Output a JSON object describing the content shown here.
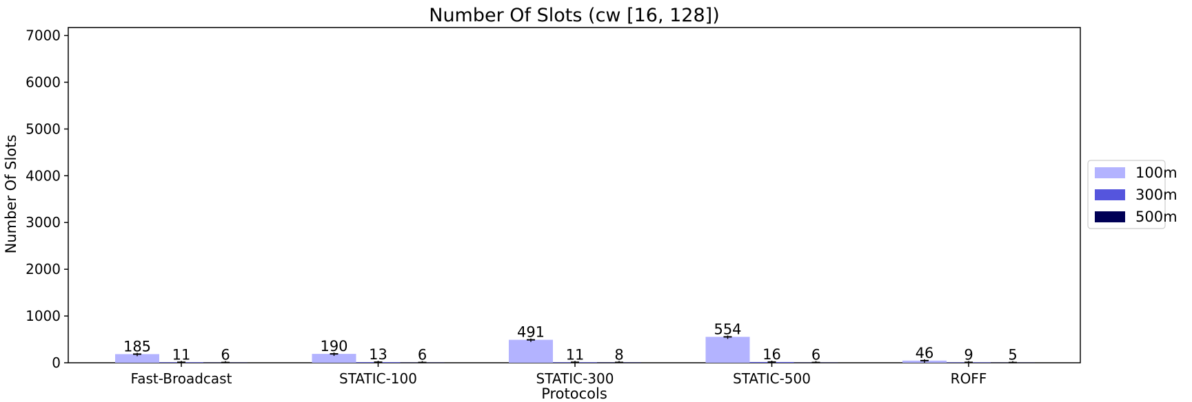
{
  "chart_data": {
    "type": "bar",
    "title": "Number Of Slots (cw [16, 128])",
    "xlabel": "Protocols",
    "ylabel": "Number Of Slots",
    "ylim": [
      0,
      7170
    ],
    "yticks": [
      0,
      1000,
      2000,
      3000,
      4000,
      5000,
      6000,
      7000
    ],
    "categories": [
      "Fast-Broadcast",
      "STATIC-100",
      "STATIC-300",
      "STATIC-500",
      "ROFF"
    ],
    "series": [
      {
        "name": "100m",
        "color": "#b3b3ff",
        "values": [
          185,
          190,
          491,
          554,
          46
        ]
      },
      {
        "name": "300m",
        "color": "#5555dd",
        "values": [
          11,
          13,
          11,
          16,
          9
        ]
      },
      {
        "name": "500m",
        "color": "#000055",
        "values": [
          6,
          6,
          8,
          6,
          5
        ]
      }
    ],
    "legend": "right",
    "grid": false
  }
}
